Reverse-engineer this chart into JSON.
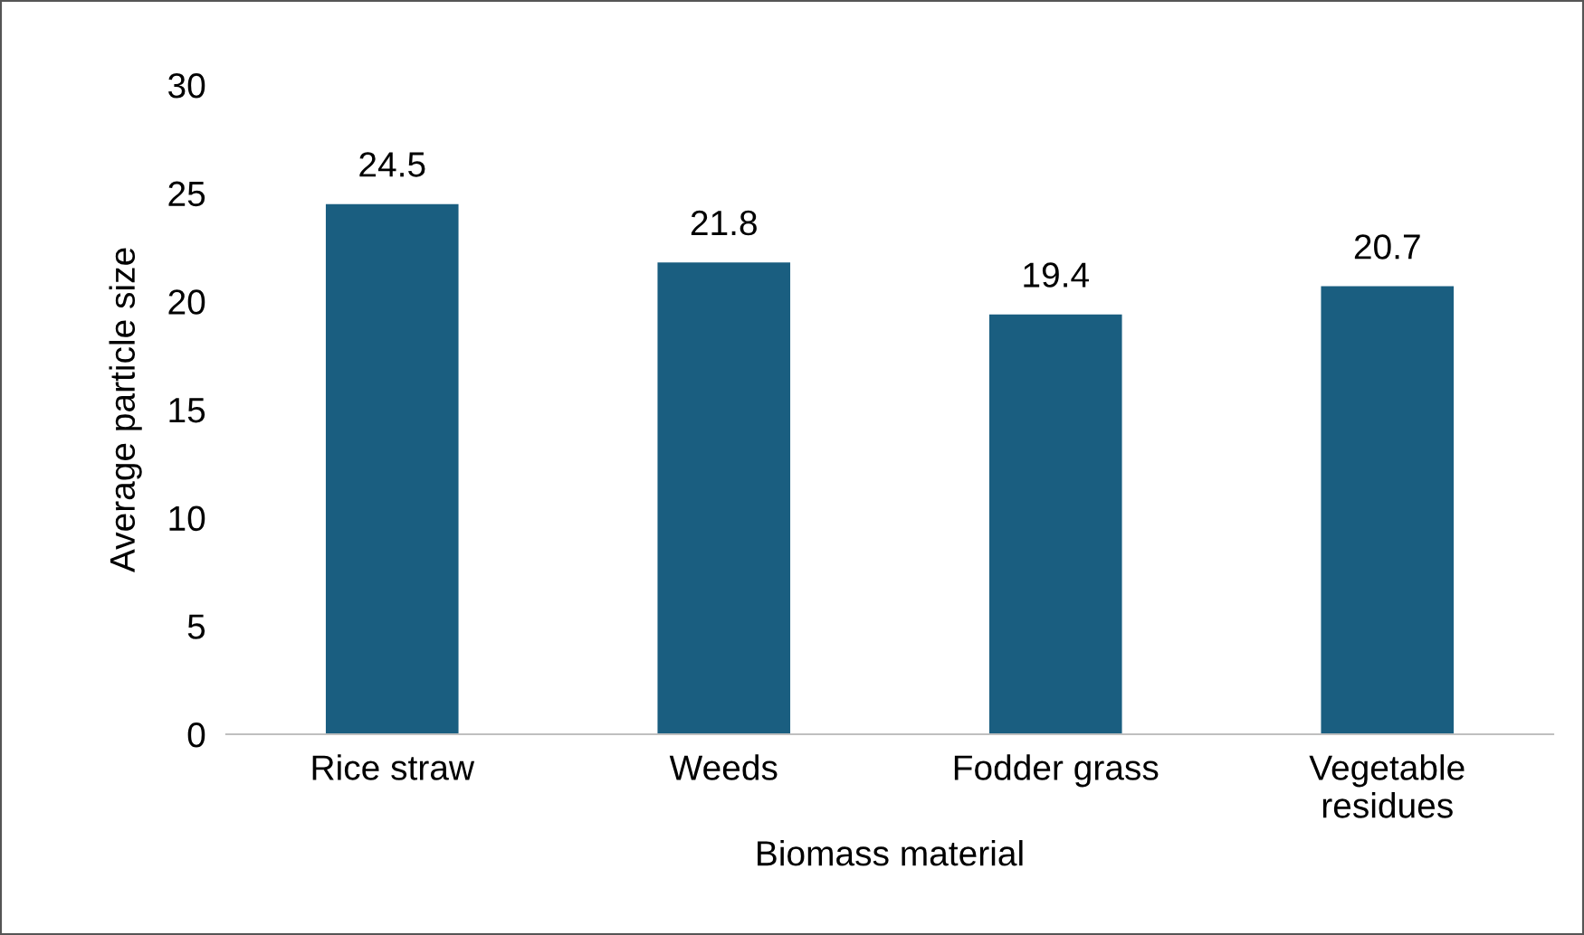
{
  "chart_data": {
    "type": "bar",
    "xlabel": "Biomass material",
    "ylabel": "Average particle size",
    "categories": [
      "Rice straw",
      "Weeds",
      "Fodder grass",
      "Vegetable\nresidues"
    ],
    "values": [
      24.5,
      21.8,
      19.4,
      20.7
    ],
    "color": "#1a5e80",
    "ylim": [
      0,
      30
    ],
    "yticks": [
      0,
      5,
      10,
      15,
      20,
      25,
      30
    ],
    "grid": false,
    "data_labels": true
  }
}
